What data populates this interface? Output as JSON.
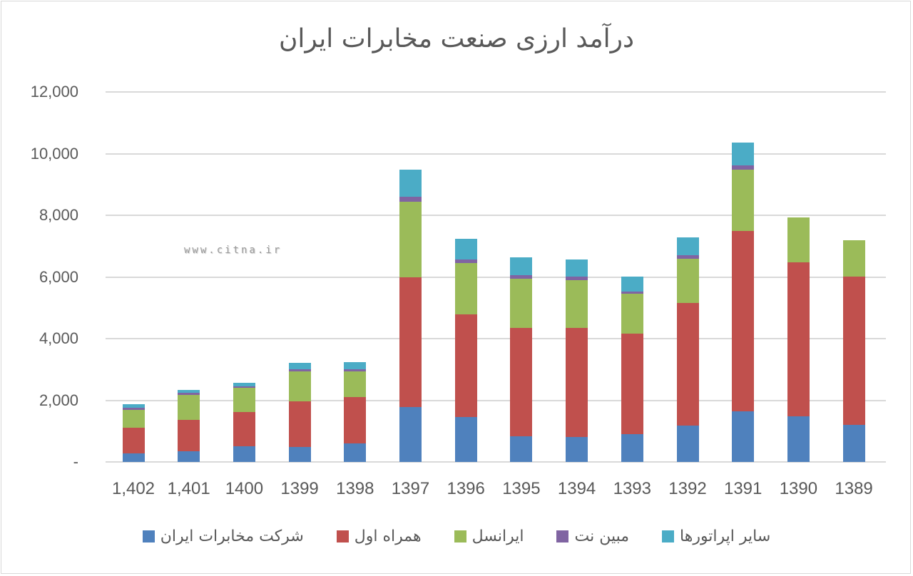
{
  "chart_data": {
    "type": "bar",
    "stacked": true,
    "title": "درآمد ارزی صنعت مخابرات ایران",
    "xlabel": "",
    "ylabel": "",
    "ylim": [
      0,
      12000
    ],
    "yticks": [
      "-",
      "2,000",
      "4,000",
      "6,000",
      "8,000",
      "10,000",
      "12,000"
    ],
    "grid": true,
    "legend_position": "bottom",
    "categories": [
      "1,402",
      "1,401",
      "1400",
      "1399",
      "1398",
      "1397",
      "1396",
      "1395",
      "1394",
      "1393",
      "1392",
      "1391",
      "1390",
      "1389"
    ],
    "series": [
      {
        "name": "شرکت مخابرات ایران",
        "color": "#4f81bd",
        "values": [
          280,
          350,
          510,
          490,
          600,
          1780,
          1460,
          830,
          810,
          900,
          1180,
          1640,
          1480,
          1200
        ]
      },
      {
        "name": "همراه اول",
        "color": "#c0504d",
        "values": [
          830,
          1020,
          1110,
          1480,
          1510,
          4210,
          3330,
          3520,
          3540,
          3270,
          3980,
          5860,
          5000,
          4820
        ]
      },
      {
        "name": "ایرانسل",
        "color": "#9bbb59",
        "values": [
          580,
          810,
          790,
          970,
          830,
          2460,
          1650,
          1600,
          1550,
          1290,
          1440,
          1970,
          1440,
          1180
        ]
      },
      {
        "name": "مبین نت",
        "color": "#8064a2",
        "values": [
          70,
          70,
          40,
          70,
          70,
          160,
          130,
          110,
          120,
          70,
          110,
          160,
          0,
          0
        ]
      },
      {
        "name": "سایر اپراتورها",
        "color": "#4bacc6",
        "values": [
          110,
          90,
          120,
          210,
          230,
          860,
          670,
          580,
          550,
          490,
          580,
          740,
          0,
          0
        ]
      }
    ],
    "totals": [
      1870,
      2340,
      2570,
      3220,
      3240,
      9470,
      7240,
      6640,
      6570,
      6020,
      7290,
      10370,
      7920,
      7200
    ]
  },
  "watermark": "www.citna.ir"
}
